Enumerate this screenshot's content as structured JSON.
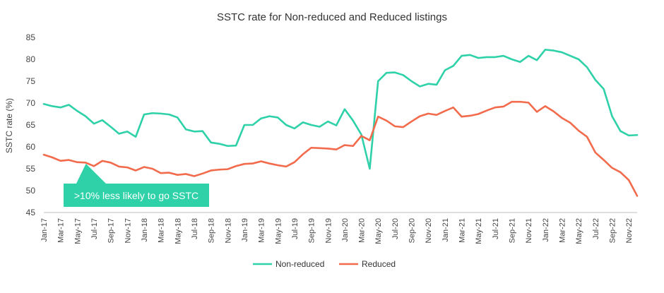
{
  "chart_data": {
    "type": "line",
    "title": "SSTC rate for Non-reduced and Reduced listings",
    "ylabel": "SSTC rate (%)",
    "xlabel": "",
    "ylim": [
      45,
      85
    ],
    "yticks": [
      45,
      50,
      55,
      60,
      65,
      70,
      75,
      80,
      85
    ],
    "x": [
      "Jan-17",
      "Feb-17",
      "Mar-17",
      "Apr-17",
      "May-17",
      "Jun-17",
      "Jul-17",
      "Aug-17",
      "Sep-17",
      "Oct-17",
      "Nov-17",
      "Dec-17",
      "Jan-18",
      "Feb-18",
      "Mar-18",
      "Apr-18",
      "May-18",
      "Jun-18",
      "Jul-18",
      "Aug-18",
      "Sep-18",
      "Oct-18",
      "Nov-18",
      "Dec-18",
      "Jan-19",
      "Feb-19",
      "Mar-19",
      "Apr-19",
      "May-19",
      "Jun-19",
      "Jul-19",
      "Aug-19",
      "Sep-19",
      "Oct-19",
      "Nov-19",
      "Dec-19",
      "Jan-20",
      "Feb-20",
      "Mar-20",
      "Apr-20",
      "May-20",
      "Jun-20",
      "Jul-20",
      "Aug-20",
      "Sep-20",
      "Oct-20",
      "Nov-20",
      "Dec-20",
      "Jan-21",
      "Feb-21",
      "Mar-21",
      "Apr-21",
      "May-21",
      "Jun-21",
      "Jul-21",
      "Aug-21",
      "Sep-21",
      "Oct-21",
      "Nov-21",
      "Dec-21",
      "Jan-22",
      "Feb-22",
      "Mar-22",
      "Apr-22",
      "May-22",
      "Jun-22",
      "Jul-22",
      "Aug-22",
      "Sep-22",
      "Oct-22",
      "Nov-22",
      "Dec-22"
    ],
    "xtick_labels": [
      "Jan-17",
      "Mar-17",
      "May-17",
      "Jul-17",
      "Sep-17",
      "Nov-17",
      "Jan-18",
      "Mar-18",
      "May-18",
      "Jul-18",
      "Sep-18",
      "Nov-18",
      "Jan-19",
      "Mar-19",
      "May-19",
      "Jul-19",
      "Sep-19",
      "Nov-19",
      "Jan-20",
      "Mar-20",
      "May-20",
      "Jul-20",
      "Sep-20",
      "Nov-20",
      "Jan-21",
      "Mar-21",
      "May-21",
      "Jul-21",
      "Sep-21",
      "Nov-21",
      "Jan-22",
      "Mar-22",
      "May-22",
      "Jul-22",
      "Sep-22",
      "Nov-22"
    ],
    "series": [
      {
        "name": "Non-reduced",
        "color": "#2ed1a8",
        "values": [
          69.8,
          69.3,
          69.0,
          69.6,
          68.2,
          67.0,
          65.3,
          66.1,
          64.6,
          63.0,
          63.5,
          62.3,
          67.4,
          67.7,
          67.6,
          67.4,
          66.7,
          64.0,
          63.5,
          63.6,
          61.0,
          60.7,
          60.2,
          60.3,
          65.0,
          65.0,
          66.5,
          67.0,
          66.7,
          65.0,
          64.2,
          65.6,
          65.0,
          64.6,
          65.8,
          64.9,
          68.6,
          66.0,
          62.8,
          55.0,
          75.0,
          76.9,
          77.0,
          76.4,
          75.0,
          73.8,
          74.4,
          74.2,
          77.5,
          78.5,
          80.8,
          81.0,
          80.3,
          80.5,
          80.5,
          80.8,
          80.0,
          79.4,
          80.8,
          79.8,
          82.2,
          82.0,
          81.6,
          80.8,
          80.0,
          78.2,
          75.3,
          73.2,
          67.0,
          63.6,
          62.6,
          62.7
        ]
      },
      {
        "name": "Reduced",
        "color": "#f26b4c",
        "values": [
          58.2,
          57.6,
          56.8,
          57.0,
          56.5,
          56.4,
          55.6,
          56.8,
          56.4,
          55.5,
          55.3,
          54.6,
          55.4,
          55.0,
          54.0,
          54.1,
          53.6,
          53.8,
          53.3,
          53.9,
          54.6,
          54.8,
          54.9,
          55.6,
          56.1,
          56.2,
          56.7,
          56.2,
          55.8,
          55.5,
          56.5,
          58.3,
          59.8,
          59.7,
          59.6,
          59.4,
          60.4,
          60.2,
          62.5,
          61.5,
          66.9,
          66.0,
          64.7,
          64.5,
          65.8,
          67.0,
          67.6,
          67.3,
          68.2,
          69.0,
          66.9,
          67.1,
          67.5,
          68.3,
          69.0,
          69.2,
          70.3,
          70.3,
          70.1,
          68.0,
          69.3,
          68.1,
          66.6,
          65.5,
          63.7,
          62.3,
          58.7,
          57.0,
          55.2,
          54.2,
          52.4,
          48.8
        ]
      }
    ],
    "annotation": {
      "text": ">10% less likely to go SSTC",
      "color": "#2ed1a8",
      "points_to": "Mar-17"
    },
    "grid": false,
    "legend": "bottom-center"
  }
}
